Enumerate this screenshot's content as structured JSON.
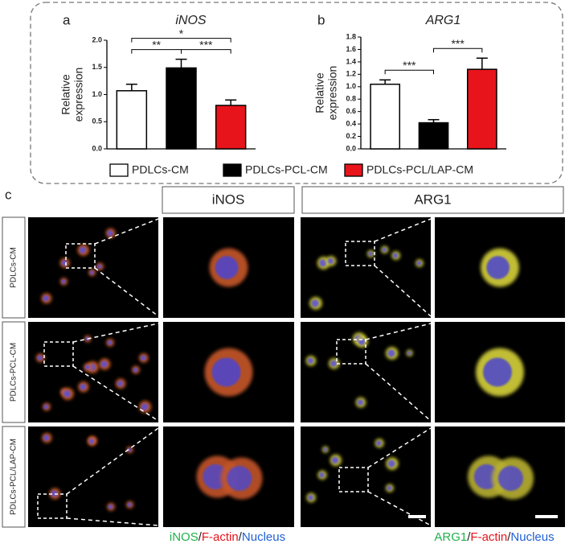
{
  "chart_data": [
    {
      "type": "bar",
      "panel": "a",
      "title": "iNOS",
      "ylabel": [
        "Relative",
        "expression"
      ],
      "categories": [
        null,
        null,
        null
      ],
      "values": [
        1.07,
        1.49,
        0.8
      ],
      "errors": [
        0.12,
        0.16,
        0.1
      ],
      "colors": [
        "#ffffff",
        "#000000",
        "#e8141b"
      ],
      "ylim": [
        0,
        2
      ],
      "yticks": [
        {
          "value": 0,
          "label": "0.0"
        },
        0.5,
        {
          "value": 1,
          "label": "1.0"
        },
        1.5,
        {
          "value": 2,
          "label": "2.0"
        }
      ],
      "annotations": [
        {
          "text": "**",
          "between": [
            0,
            1
          ]
        },
        {
          "text": "***",
          "between": [
            1,
            2
          ]
        },
        {
          "text": "*",
          "between": [
            0,
            2
          ]
        }
      ]
    },
    {
      "type": "bar",
      "panel": "b",
      "title": "ARG1",
      "ylabel": [
        "Relative",
        "expression"
      ],
      "categories": [
        null,
        null,
        null
      ],
      "values": [
        1.04,
        0.42,
        1.28
      ],
      "errors": [
        0.07,
        0.05,
        0.18
      ],
      "colors": [
        "#ffffff",
        "#000000",
        "#e8141b"
      ],
      "ylim": [
        0,
        1.8
      ],
      "yticks": [
        {
          "value": 0,
          "label": "0.0"
        },
        0.2,
        0.4,
        0.6,
        0.8,
        {
          "value": 1,
          "label": "1.0"
        },
        1.2,
        1.4,
        1.6,
        1.8
      ],
      "annotations": [
        {
          "text": "***",
          "between": [
            0,
            1
          ]
        },
        {
          "text": "***",
          "between": [
            1,
            2
          ]
        }
      ]
    }
  ],
  "legend": [
    {
      "name": "PDLCs-CM",
      "color": "#ffffff"
    },
    {
      "name": "PDLCs-PCL-CM",
      "color": "#000000"
    },
    {
      "name": "PDLCs-PCL/LAP-CM",
      "color": "#e8141b"
    }
  ],
  "panel_c": {
    "label": "c",
    "columns": [
      "iNOS",
      "ARG1"
    ],
    "rows": [
      "PDLCs-CM",
      "PDLCs-PCL-CM",
      "PDLCs-PCL/LAP-CM"
    ],
    "captions": [
      [
        {
          "text": "iNOS",
          "color": "#1fb24a"
        },
        {
          "text": "/",
          "color": "#222222"
        },
        {
          "text": "F-actin",
          "color": "#e8141b"
        },
        {
          "text": "/",
          "color": "#222222"
        },
        {
          "text": "Nucleus",
          "color": "#1f5fd6"
        }
      ],
      [
        {
          "text": "ARG1",
          "color": "#1fb24a"
        },
        {
          "text": "/",
          "color": "#222222"
        },
        {
          "text": "F-actin",
          "color": "#e8141b"
        },
        {
          "text": "/",
          "color": "#222222"
        },
        {
          "text": "Nucleus",
          "color": "#1f5fd6"
        }
      ]
    ]
  }
}
